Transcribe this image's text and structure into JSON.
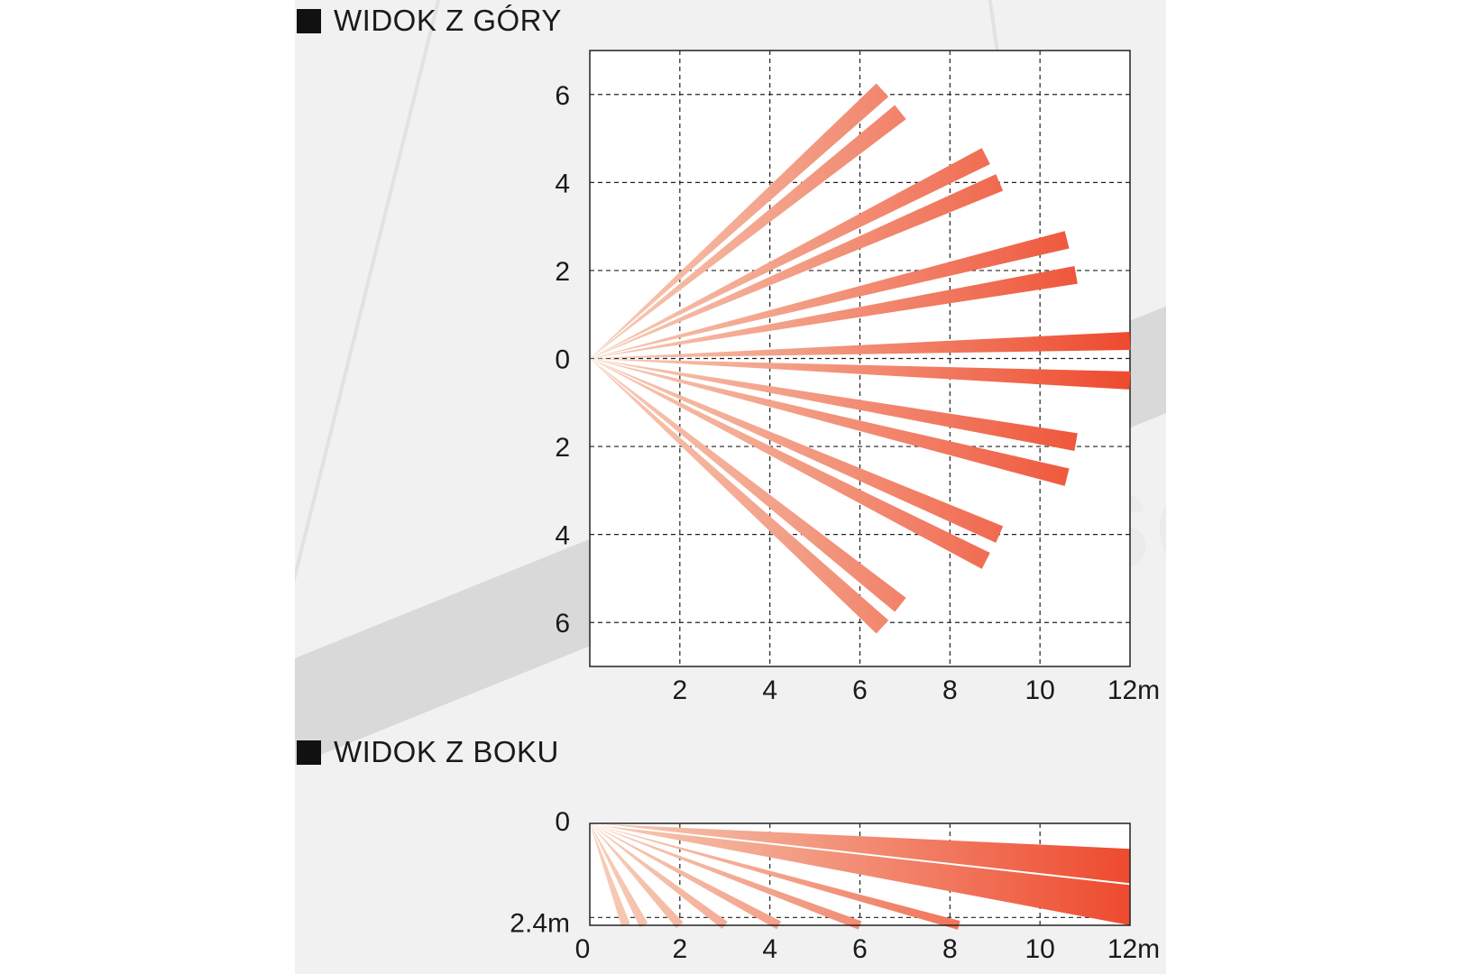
{
  "top_view": {
    "title": "WIDOK Z GÓRY",
    "y_ticks": [
      "6",
      "4",
      "2",
      "0",
      "2",
      "4",
      "6"
    ],
    "x_ticks": [
      "2",
      "4",
      "6",
      "8",
      "10",
      "12m"
    ],
    "x_range": [
      0,
      12
    ],
    "y_range": [
      -7,
      7
    ],
    "beams": [
      {
        "end": [
          6.5,
          6.1
        ]
      },
      {
        "end": [
          6.9,
          5.6
        ]
      },
      {
        "end": [
          8.8,
          4.6
        ]
      },
      {
        "end": [
          9.1,
          4.0
        ]
      },
      {
        "end": [
          10.6,
          2.7
        ]
      },
      {
        "end": [
          10.8,
          1.9
        ]
      },
      {
        "end": [
          12.0,
          0.4
        ]
      },
      {
        "end": [
          12.0,
          -0.5
        ]
      },
      {
        "end": [
          10.8,
          -1.9
        ]
      },
      {
        "end": [
          10.6,
          -2.7
        ]
      },
      {
        "end": [
          9.1,
          -4.0
        ]
      },
      {
        "end": [
          8.8,
          -4.6
        ]
      },
      {
        "end": [
          6.9,
          -5.6
        ]
      },
      {
        "end": [
          6.5,
          -6.1
        ]
      }
    ]
  },
  "side_view": {
    "title": "WIDOK Z BOKU",
    "y_ticks": [
      "0",
      "2.4m"
    ],
    "x_ticks": [
      "0",
      "2",
      "4",
      "6",
      "8",
      "10",
      "12m"
    ],
    "x_range": [
      0,
      12
    ],
    "depth_range": [
      0,
      2.6
    ],
    "beams_to_floor": [
      0.8,
      1.2,
      2.0,
      3.0,
      4.2,
      6.0,
      8.2
    ],
    "far_band": {
      "top_at_12m": 0.65,
      "bottom_at_12m": 2.6
    }
  },
  "watermark": "PLUSCOM",
  "colors": {
    "beam_light": "#f6cfba",
    "beam_dark": "#ee4a2e",
    "grid": "#222222"
  }
}
